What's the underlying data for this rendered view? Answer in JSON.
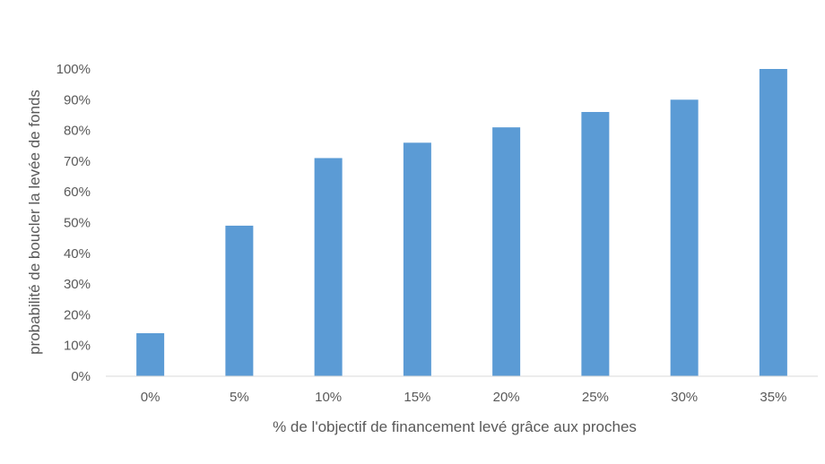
{
  "chart_data": {
    "type": "bar",
    "title": "",
    "xlabel": "% de l'objectif de financement levé grâce aux proches",
    "ylabel": "probabilité de boucler la levée de fonds",
    "categories": [
      "0%",
      "5%",
      "10%",
      "15%",
      "20%",
      "25%",
      "30%",
      "35%"
    ],
    "values": [
      0.14,
      0.49,
      0.71,
      0.76,
      0.81,
      0.86,
      0.9,
      1.0
    ],
    "ylim": [
      0,
      1
    ],
    "y_ticks": [
      "0%",
      "10%",
      "20%",
      "30%",
      "40%",
      "50%",
      "60%",
      "70%",
      "80%",
      "90%",
      "100%"
    ],
    "y_tick_values": [
      0,
      0.1,
      0.2,
      0.3,
      0.4,
      0.5,
      0.6,
      0.7,
      0.8,
      0.9,
      1.0
    ],
    "grid": false,
    "legend": "none",
    "bar_color": "#5b9bd5",
    "axis_color": "#d9d9d9"
  }
}
